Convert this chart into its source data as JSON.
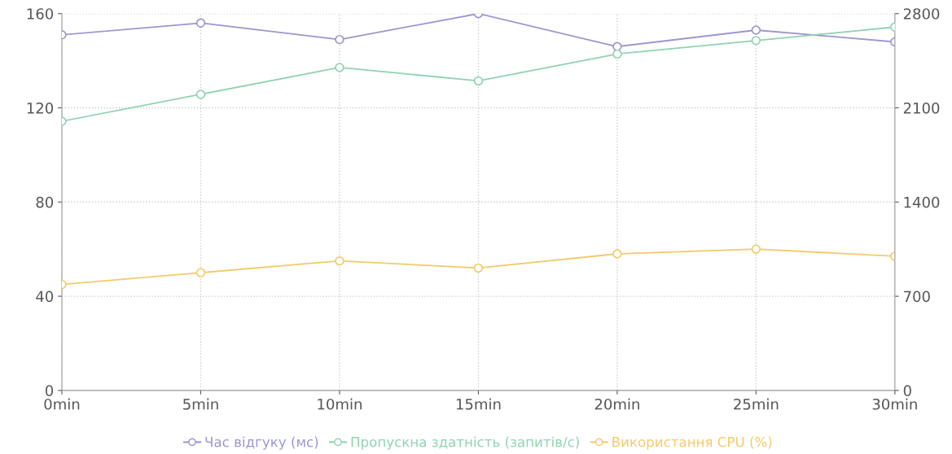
{
  "chart_data": {
    "type": "line",
    "categories": [
      "0min",
      "5min",
      "10min",
      "15min",
      "20min",
      "25min",
      "30min"
    ],
    "series": [
      {
        "name": "Час відгуку (мс)",
        "color": "#9b96cf",
        "values": [
          151,
          156,
          149,
          160,
          146,
          153,
          148
        ]
      },
      {
        "name": "Пропускна здатність (запитів/с)",
        "color": "#8fd3b0",
        "axis": "y2",
        "values": [
          2000,
          2200,
          2400,
          2300,
          2500,
          2600,
          2700
        ]
      },
      {
        "name": "Використання CPU (%)",
        "color": "#f5c96a",
        "values": [
          45,
          50,
          55,
          52,
          58,
          60,
          57
        ]
      }
    ],
    "ylim": [
      0,
      160
    ],
    "yticks": [
      0,
      40,
      80,
      120,
      160
    ],
    "y2lim": [
      0,
      2800
    ],
    "y2ticks": [
      0,
      700,
      1400,
      2100,
      2800
    ],
    "grid": true,
    "legend": "bottom",
    "marker": "circle",
    "line_style": "solid"
  }
}
